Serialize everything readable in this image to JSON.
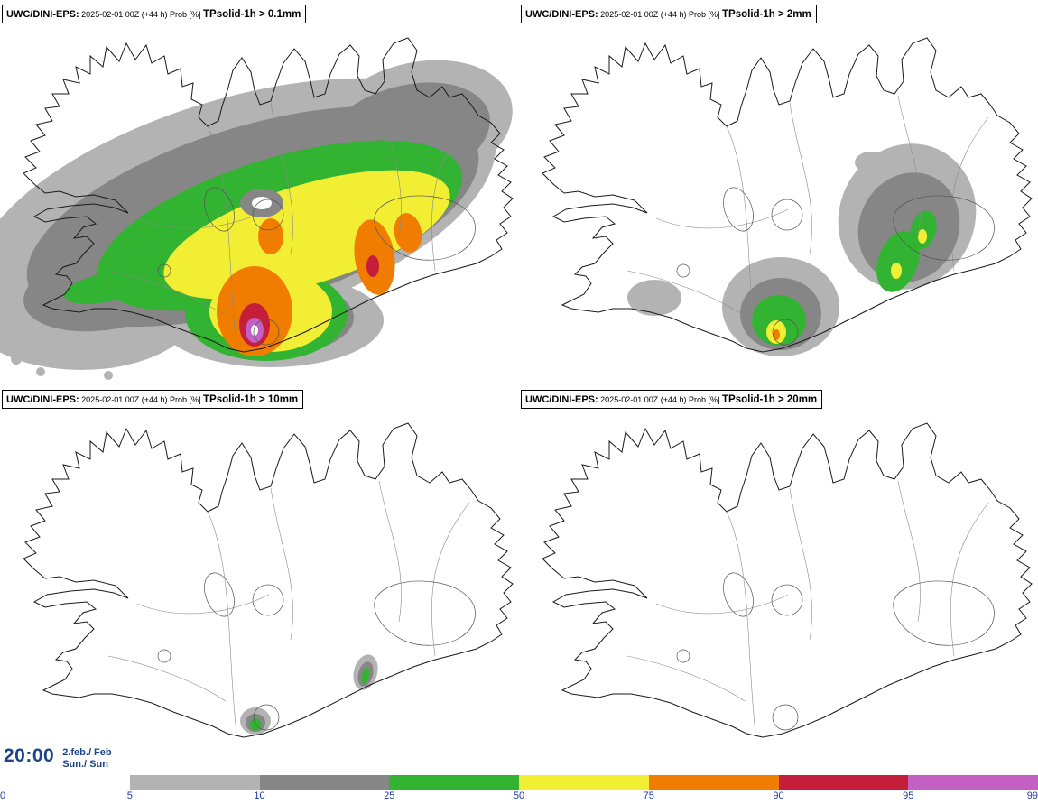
{
  "panels": [
    {
      "model": "UWC/DINI-EPS:",
      "meta": " 2025-02-01 00Z (+44 h) Prob [%] ",
      "param": "TPsolid-1h > 0.1mm"
    },
    {
      "model": "UWC/DINI-EPS:",
      "meta": " 2025-02-01 00Z (+44 h) Prob [%] ",
      "param": "TPsolid-1h > 2mm"
    },
    {
      "model": "UWC/DINI-EPS:",
      "meta": " 2025-02-01 00Z (+44 h) Prob [%] ",
      "param": "TPsolid-1h > 10mm"
    },
    {
      "model": "UWC/DINI-EPS:",
      "meta": " 2025-02-01 00Z (+44 h) Prob [%] ",
      "param": "TPsolid-1h > 20mm"
    }
  ],
  "footer": {
    "time": "20:00",
    "date_top": "2.feb./ Feb",
    "date_bottom": "Sun./ Sun"
  },
  "colorbar": {
    "tick_labels": [
      "0",
      "5",
      "10",
      "25",
      "50",
      "75",
      "90",
      "95",
      "99"
    ],
    "segment_colors": [
      "#ffffff",
      "#b3b3b3",
      "#868686",
      "#32b332",
      "#f2ee33",
      "#f07c00",
      "#c51e3a",
      "#c45fc4"
    ]
  },
  "colors": {
    "tick": "#2038a8",
    "footer": "#1c4587"
  }
}
